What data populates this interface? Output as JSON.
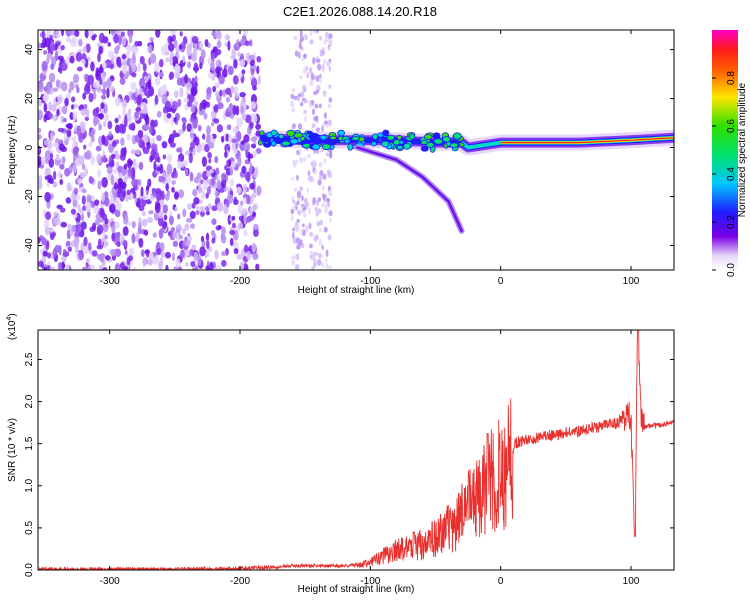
{
  "title": "C2E1.2026.088.14.20.R18",
  "colors": {
    "spectrogram_bg": "#ffffff",
    "snr_line": "#e8312f",
    "axis": "#000000"
  },
  "chart_data": [
    {
      "type": "heatmap",
      "name": "spectrogram",
      "xlabel": "Height of straight line (km)",
      "ylabel": "Frequency (Hz)",
      "xlim": [
        -355,
        133
      ],
      "ylim": [
        -50,
        48
      ],
      "xticks": [
        -300,
        -200,
        -100,
        0,
        100
      ],
      "yticks": [
        -40,
        -20,
        0,
        20,
        40
      ],
      "colormap": "rainbow",
      "colorbar": {
        "label": "Normalized spectral amplitude",
        "range": [
          0,
          1
        ],
        "ticks": [
          0.0,
          0.2,
          0.4,
          0.6,
          0.8
        ]
      },
      "features": {
        "noise_region_x": [
          -355,
          -185
        ],
        "noise_band_x": [
          -160,
          -130
        ],
        "signal_line": [
          [
            -185,
            4
          ],
          [
            -150,
            3
          ],
          [
            -110,
            3
          ],
          [
            -80,
            3
          ],
          [
            -50,
            2
          ],
          [
            -30,
            2
          ],
          [
            -25,
            0
          ],
          [
            0,
            2
          ],
          [
            20,
            2
          ],
          [
            60,
            2
          ],
          [
            100,
            3
          ],
          [
            133,
            4
          ]
        ],
        "branch_line": [
          [
            -110,
            0
          ],
          [
            -80,
            -5
          ],
          [
            -60,
            -12
          ],
          [
            -40,
            -22
          ],
          [
            -30,
            -34
          ]
        ]
      }
    },
    {
      "type": "line",
      "name": "snr",
      "xlabel": "Height of straight line (km)",
      "ylabel": "SNR (10 * v/v)",
      "yscale_label": "(x10",
      "yscale_exp": "4",
      "yscale_close": ")",
      "xlim": [
        -355,
        133
      ],
      "ylim": [
        0,
        2.85
      ],
      "xticks": [
        -300,
        -200,
        -100,
        0,
        100
      ],
      "yticks": [
        0.0,
        0.5,
        1.0,
        1.5,
        2.0,
        2.5
      ],
      "x": [
        -355,
        -300,
        -250,
        -200,
        -180,
        -160,
        -140,
        -120,
        -110,
        -100,
        -90,
        -80,
        -70,
        -60,
        -50,
        -40,
        -30,
        -25,
        -20,
        -15,
        -10,
        -5,
        0,
        5,
        10,
        20,
        30,
        40,
        50,
        60,
        70,
        80,
        90,
        95,
        100,
        103,
        105,
        108,
        110,
        120,
        133
      ],
      "values": [
        0.01,
        0.01,
        0.01,
        0.02,
        0.03,
        0.05,
        0.05,
        0.05,
        0.06,
        0.1,
        0.18,
        0.25,
        0.3,
        0.35,
        0.42,
        0.55,
        0.7,
        0.95,
        0.9,
        1.0,
        1.1,
        1.2,
        1.3,
        1.4,
        1.5,
        1.55,
        1.58,
        1.6,
        1.62,
        1.65,
        1.68,
        1.72,
        1.75,
        1.85,
        1.8,
        0.4,
        2.85,
        1.75,
        1.7,
        1.72,
        1.75
      ]
    }
  ]
}
